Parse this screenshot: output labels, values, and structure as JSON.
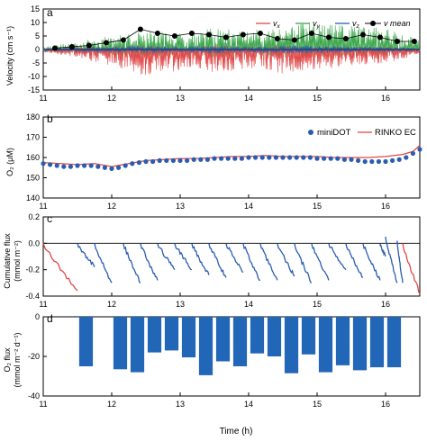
{
  "chart_data": [
    {
      "panel": "a",
      "type": "line",
      "ylabel": "Velocity (cm s⁻¹)",
      "xlim": [
        11,
        16.5
      ],
      "ylim": [
        -15,
        15
      ],
      "xticks": [
        11,
        12,
        13,
        14,
        15,
        16
      ],
      "yticks": [
        -15,
        -10,
        -5,
        0,
        5,
        10,
        15
      ],
      "grid": false,
      "legend": {
        "position": "top-right",
        "entries": [
          "vx",
          "vy",
          "vz",
          "v mean"
        ]
      },
      "series": [
        {
          "name": "vx",
          "color": "#e04848",
          "style": "noisy-line",
          "x": [
            11,
            11.5,
            12,
            12.5,
            13,
            13.5,
            14,
            14.5,
            15,
            15.5,
            16,
            16.5
          ],
          "low": [
            -1,
            -3,
            -6,
            -10,
            -8,
            -9,
            -7,
            -9,
            -8,
            -6,
            -5,
            -2
          ],
          "high": [
            0.5,
            1,
            1,
            1.5,
            1,
            1.5,
            1,
            1.5,
            1,
            1,
            1,
            0.5
          ]
        },
        {
          "name": "vy",
          "color": "#3aa64a",
          "style": "noisy-line",
          "x": [
            11,
            11.5,
            12,
            12.5,
            13,
            13.5,
            14,
            14.5,
            15,
            15.5,
            16,
            16.5
          ],
          "low": [
            -1,
            -1.5,
            -2,
            -3,
            -2,
            -3,
            -2,
            -3,
            -3,
            -2,
            -2,
            -1
          ],
          "high": [
            1,
            3,
            5,
            7,
            6,
            8,
            7,
            9,
            10,
            9,
            8,
            4
          ]
        },
        {
          "name": "vz",
          "color": "#2a5db0",
          "style": "noisy-line",
          "x": [
            11,
            11.5,
            12,
            12.5,
            13,
            13.5,
            14,
            14.5,
            15,
            15.5,
            16,
            16.5
          ],
          "low": [
            -0.5,
            -1,
            -1,
            -1.5,
            -1,
            -1.5,
            -1,
            -1.5,
            -1.5,
            -1,
            -1,
            -0.5
          ],
          "high": [
            0.5,
            1,
            1,
            1.5,
            1,
            1.5,
            1,
            1.5,
            1.5,
            1,
            1,
            0.5
          ]
        },
        {
          "name": "v mean",
          "color": "#000000",
          "style": "line-markers",
          "x": [
            11.17,
            11.42,
            11.67,
            11.92,
            12.17,
            12.42,
            12.67,
            12.92,
            13.17,
            13.42,
            13.67,
            13.92,
            14.17,
            14.42,
            14.67,
            14.92,
            15.17,
            15.42,
            15.67,
            15.92,
            16.17,
            16.42
          ],
          "y": [
            0.5,
            1,
            1.5,
            2.5,
            3.5,
            7.5,
            6,
            5,
            6,
            5.5,
            4.5,
            5.5,
            6,
            4,
            3.5,
            6,
            4.5,
            4,
            5.5,
            4.5,
            3,
            3
          ]
        }
      ]
    },
    {
      "panel": "b",
      "type": "line",
      "ylabel": "O₂ (μM)",
      "xlim": [
        11,
        16.5
      ],
      "ylim": [
        140,
        180
      ],
      "xticks": [
        11,
        12,
        13,
        14,
        15,
        16
      ],
      "yticks": [
        140,
        150,
        160,
        170,
        180
      ],
      "grid": false,
      "legend": {
        "position": "top-right",
        "entries": [
          "miniDOT",
          "RINKO EC"
        ]
      },
      "series": [
        {
          "name": "miniDOT",
          "color": "#2a5db0",
          "style": "markers",
          "x": [
            11.0,
            11.1,
            11.2,
            11.3,
            11.4,
            11.5,
            11.6,
            11.7,
            11.8,
            11.9,
            12.0,
            12.1,
            12.2,
            12.3,
            12.4,
            12.5,
            12.6,
            12.7,
            12.8,
            12.9,
            13.0,
            13.1,
            13.2,
            13.3,
            13.4,
            13.5,
            13.6,
            13.7,
            13.8,
            13.9,
            14.0,
            14.1,
            14.2,
            14.3,
            14.4,
            14.5,
            14.6,
            14.7,
            14.8,
            14.9,
            15.0,
            15.1,
            15.2,
            15.3,
            15.4,
            15.5,
            15.6,
            15.7,
            15.8,
            15.9,
            16.0,
            16.1,
            16.2,
            16.3,
            16.4,
            16.5
          ],
          "y": [
            157,
            156.5,
            156,
            155.5,
            155.5,
            156,
            156,
            156,
            155.5,
            155,
            154.5,
            155,
            156,
            157,
            157.5,
            158,
            158,
            158.5,
            158.5,
            158.5,
            158.5,
            158.5,
            159,
            159,
            159,
            159.5,
            159.5,
            159.5,
            159.5,
            159.5,
            160,
            160,
            160,
            160,
            160,
            160,
            160,
            160,
            160,
            160,
            159.5,
            159.5,
            159.5,
            159.5,
            159,
            159,
            158.5,
            158,
            158,
            158,
            158,
            158.5,
            159,
            160,
            162,
            164
          ]
        },
        {
          "name": "RINKO EC",
          "color": "#e04848",
          "style": "line",
          "x": [
            11.0,
            11.25,
            11.5,
            11.75,
            12.0,
            12.25,
            12.5,
            12.75,
            13.0,
            13.25,
            13.5,
            13.75,
            14.0,
            14.25,
            14.5,
            14.75,
            15.0,
            15.25,
            15.5,
            15.75,
            16.0,
            16.25,
            16.4,
            16.5
          ],
          "y": [
            157.5,
            157,
            156.5,
            157,
            155.5,
            157,
            158.5,
            159,
            159.5,
            159.5,
            160,
            160.5,
            160.5,
            161,
            160.5,
            160.5,
            160.5,
            160,
            160,
            160,
            160.5,
            161.5,
            163,
            166
          ]
        }
      ]
    },
    {
      "panel": "c",
      "type": "line",
      "ylabel": "Cumulative flux (mmol m⁻²)",
      "xlim": [
        11,
        16.5
      ],
      "ylim": [
        -0.4,
        0.2
      ],
      "xticks": [
        11,
        12,
        13,
        14,
        15,
        16
      ],
      "yticks": [
        -0.4,
        -0.2,
        0.0,
        0.2
      ],
      "ytick_labels": [
        "-0.4",
        "-0.2",
        "0.0",
        "0.2"
      ],
      "grid": false,
      "zero_line": true,
      "series": [
        {
          "name": "",
          "color": "#e04848",
          "style": "segments",
          "segments": [
            {
              "x0": 11.0,
              "x1": 11.5,
              "y0": 0.0,
              "y1": -0.36
            },
            {
              "x0": 16.25,
              "x1": 16.5,
              "y0": 0.0,
              "y1": -0.38
            }
          ]
        },
        {
          "name": "",
          "color": "#2a5db0",
          "style": "segments",
          "segments": [
            {
              "x0": 11.5,
              "x1": 11.75,
              "y0": 0.0,
              "y1": -0.18
            },
            {
              "x0": 11.75,
              "x1": 12.0,
              "y0": 0.0,
              "y1": -0.3
            },
            {
              "x0": 12.17,
              "x1": 12.42,
              "y0": 0.0,
              "y1": -0.3
            },
            {
              "x0": 12.42,
              "x1": 12.67,
              "y0": 0.0,
              "y1": -0.28
            },
            {
              "x0": 12.67,
              "x1": 12.92,
              "y0": 0.0,
              "y1": -0.2
            },
            {
              "x0": 12.92,
              "x1": 13.17,
              "y0": 0.0,
              "y1": -0.2
            },
            {
              "x0": 13.17,
              "x1": 13.42,
              "y0": 0.0,
              "y1": -0.24
            },
            {
              "x0": 13.42,
              "x1": 13.67,
              "y0": 0.0,
              "y1": -0.26
            },
            {
              "x0": 13.67,
              "x1": 13.92,
              "y0": 0.0,
              "y1": -0.22
            },
            {
              "x0": 13.92,
              "x1": 14.17,
              "y0": 0.0,
              "y1": -0.28
            },
            {
              "x0": 14.17,
              "x1": 14.42,
              "y0": 0.0,
              "y1": -0.28
            },
            {
              "x0": 14.42,
              "x1": 14.67,
              "y0": 0.0,
              "y1": -0.25
            },
            {
              "x0": 14.67,
              "x1": 14.92,
              "y0": 0.0,
              "y1": -0.3
            },
            {
              "x0": 14.92,
              "x1": 15.17,
              "y0": 0.0,
              "y1": -0.28
            },
            {
              "x0": 15.17,
              "x1": 15.42,
              "y0": 0.0,
              "y1": -0.2
            },
            {
              "x0": 15.42,
              "x1": 15.67,
              "y0": 0.0,
              "y1": -0.26
            },
            {
              "x0": 15.67,
              "x1": 15.92,
              "y0": 0.0,
              "y1": -0.28
            },
            {
              "x0": 15.92,
              "x1": 16.0,
              "y0": 0.0,
              "y1": -0.1
            },
            {
              "x0": 16.0,
              "x1": 16.17,
              "y0": 0.05,
              "y1": -0.3
            },
            {
              "x0": 16.17,
              "x1": 16.25,
              "y0": 0.02,
              "y1": -0.3
            }
          ]
        }
      ]
    },
    {
      "panel": "d",
      "type": "bar",
      "ylabel": "O₂ flux (mmol m⁻² d⁻¹)",
      "xlabel": "Time (h)",
      "xlim": [
        11,
        16.5
      ],
      "ylim": [
        -40,
        0
      ],
      "xticks": [
        11,
        12,
        13,
        14,
        15,
        16
      ],
      "yticks": [
        -40,
        -20,
        0
      ],
      "grid": false,
      "bar_color": "#2266b8",
      "bar_width_h": 0.2,
      "x": [
        11.625,
        12.125,
        12.375,
        12.625,
        12.875,
        13.125,
        13.375,
        13.625,
        13.875,
        14.125,
        14.375,
        14.625,
        14.875,
        15.125,
        15.375,
        15.625,
        15.875,
        16.125
      ],
      "values": [
        -25,
        -26.5,
        -28,
        -18,
        -17,
        -20.5,
        -29.5,
        -22.5,
        -25,
        -18.5,
        -20,
        -28.5,
        -19,
        -28,
        -24.5,
        -27,
        -25.5,
        -25.5
      ]
    }
  ],
  "panel_labels": [
    "a",
    "b",
    "c",
    "d"
  ],
  "legend_a": {
    "vx": "v",
    "vx_sub": "x",
    "vy": "v",
    "vy_sub": "y",
    "vz": "v",
    "vz_sub": "z",
    "vmean": "v mean"
  },
  "legend_b": {
    "minidot": "miniDOT",
    "rinko": "RINKO EC"
  },
  "ylabels": {
    "a": "Velocity (cm s⁻¹)",
    "b": "O₂ (μM)",
    "c_line1": "Cumulative flux",
    "c_line2": "(mmol m⁻²)",
    "d_line1": "O₂ flux",
    "d_line2": "(mmol m⁻² d⁻¹)"
  },
  "xlabel": "Time (h)"
}
